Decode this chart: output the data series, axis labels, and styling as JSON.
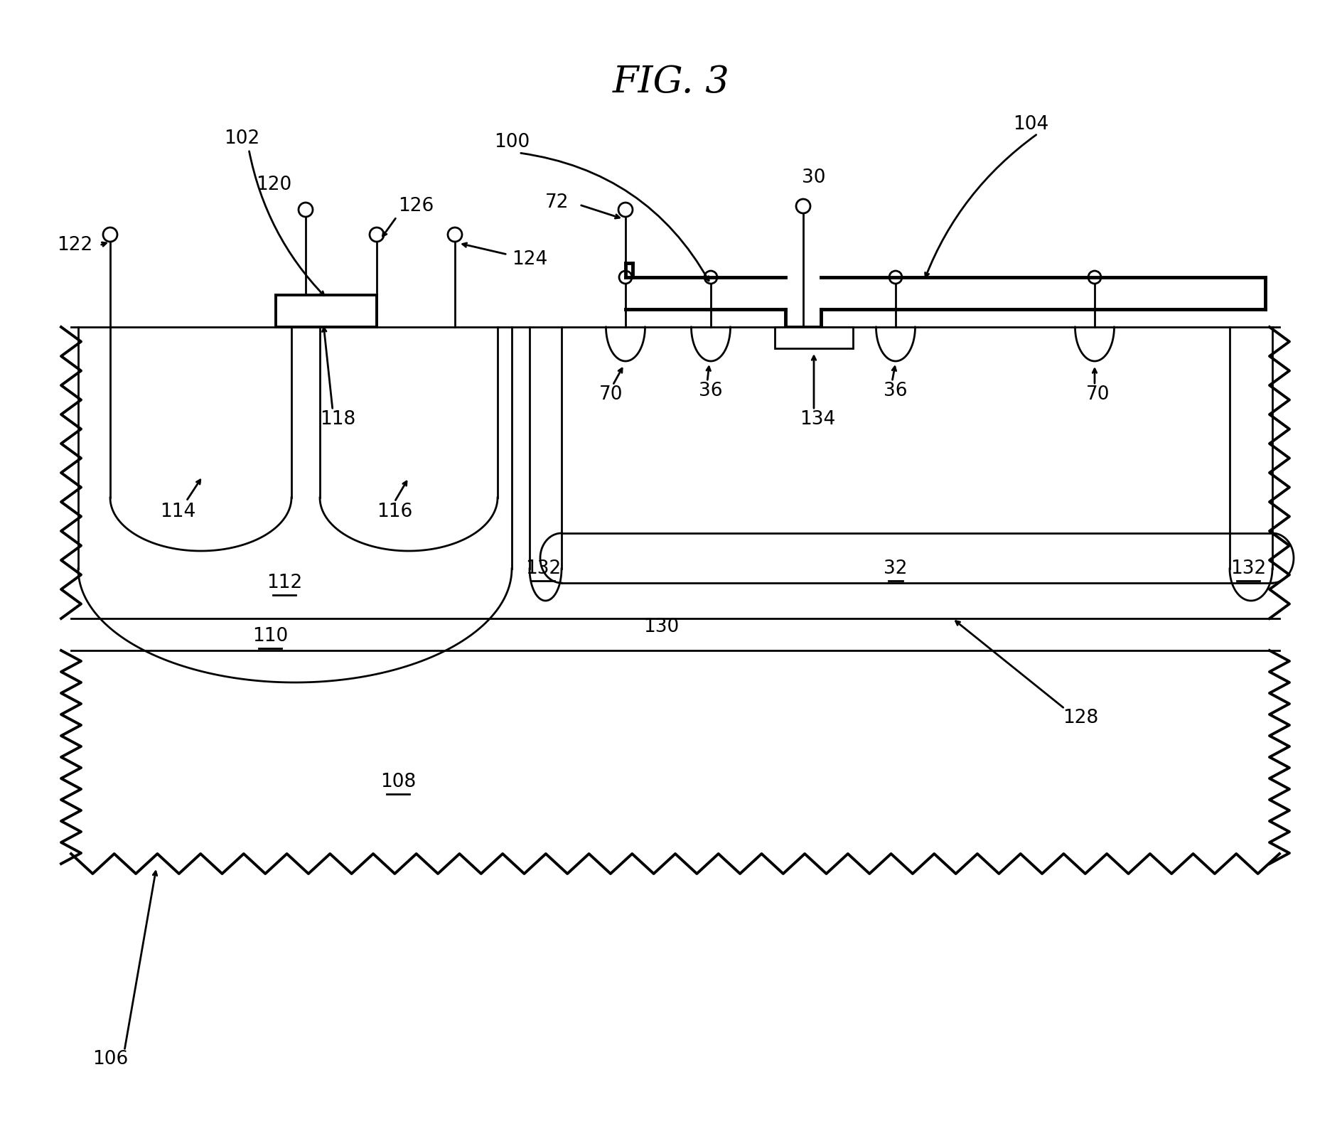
{
  "bg_color": "#ffffff",
  "line_color": "#000000",
  "fig_title": "FIG. 3"
}
